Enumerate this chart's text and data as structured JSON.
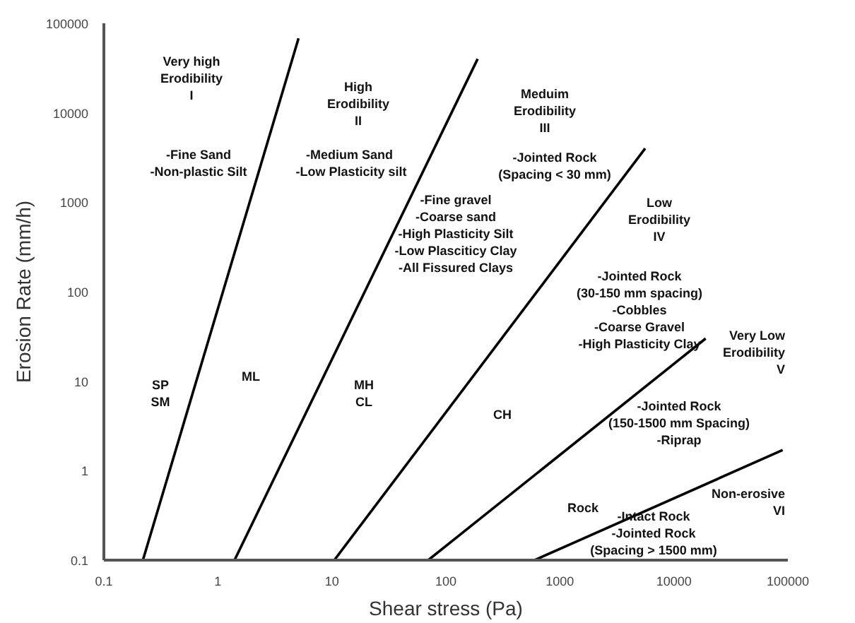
{
  "chart_data": {
    "type": "line",
    "xlabel": "Shear stress (Pa)",
    "ylabel": "Erosion Rate (mm/h)",
    "log": "xy",
    "grid": false,
    "marker": "none",
    "line_style": "solid",
    "xlim": [
      0.1,
      100000
    ],
    "ylim": [
      0.1,
      100000
    ],
    "xticks": [
      0.1,
      1,
      10,
      100,
      1000,
      10000,
      100000
    ],
    "yticks": [
      0.1,
      1,
      10,
      100,
      1000,
      10000,
      100000
    ],
    "series": [
      {
        "color": "#000000",
        "x": [
          0.22,
          5.1
        ],
        "values": [
          0.1,
          68000
        ]
      },
      {
        "color": "#000000",
        "x": [
          1.4,
          190
        ],
        "values": [
          0.1,
          40000
        ]
      },
      {
        "color": "#000000",
        "x": [
          10.5,
          5600
        ],
        "values": [
          0.1,
          4000
        ]
      },
      {
        "color": "#000000",
        "x": [
          70,
          19000
        ],
        "values": [
          0.1,
          30
        ]
      },
      {
        "color": "#000000",
        "x": [
          600,
          90000
        ],
        "values": [
          0.1,
          1.7
        ]
      }
    ],
    "annotations": [
      "Very high\nErodibility\nI",
      "-Fine Sand\n-Non-plastic Silt",
      "High\nErodibility\nII",
      "-Medium  Sand\n-Low Plasticity silt",
      "Meduim\nErodibility\nIII",
      "-Jointed Rock\n(Spacing < 30 mm)",
      "-Fine gravel\n-Coarse sand\n-High Plasticity Silt\n-Low Plasciticy Clay\n-All Fissured Clays",
      "Low\nErodibility\nIV",
      "-Jointed Rock\n(30-150 mm spacing)\n-Cobbles\n-Coarse Gravel\n-High Plasticity Clay",
      "Very Low\nErodibility\nV",
      "-Jointed Rock\n(150-1500 mm Spacing)\n-Riprap",
      "Non-erosive\nVI",
      "-Intact Rock\n-Jointed Rock\n(Spacing > 1500 mm)",
      "SP\nSM",
      "ML",
      "MH\nCL",
      "CH",
      "Rock"
    ]
  }
}
